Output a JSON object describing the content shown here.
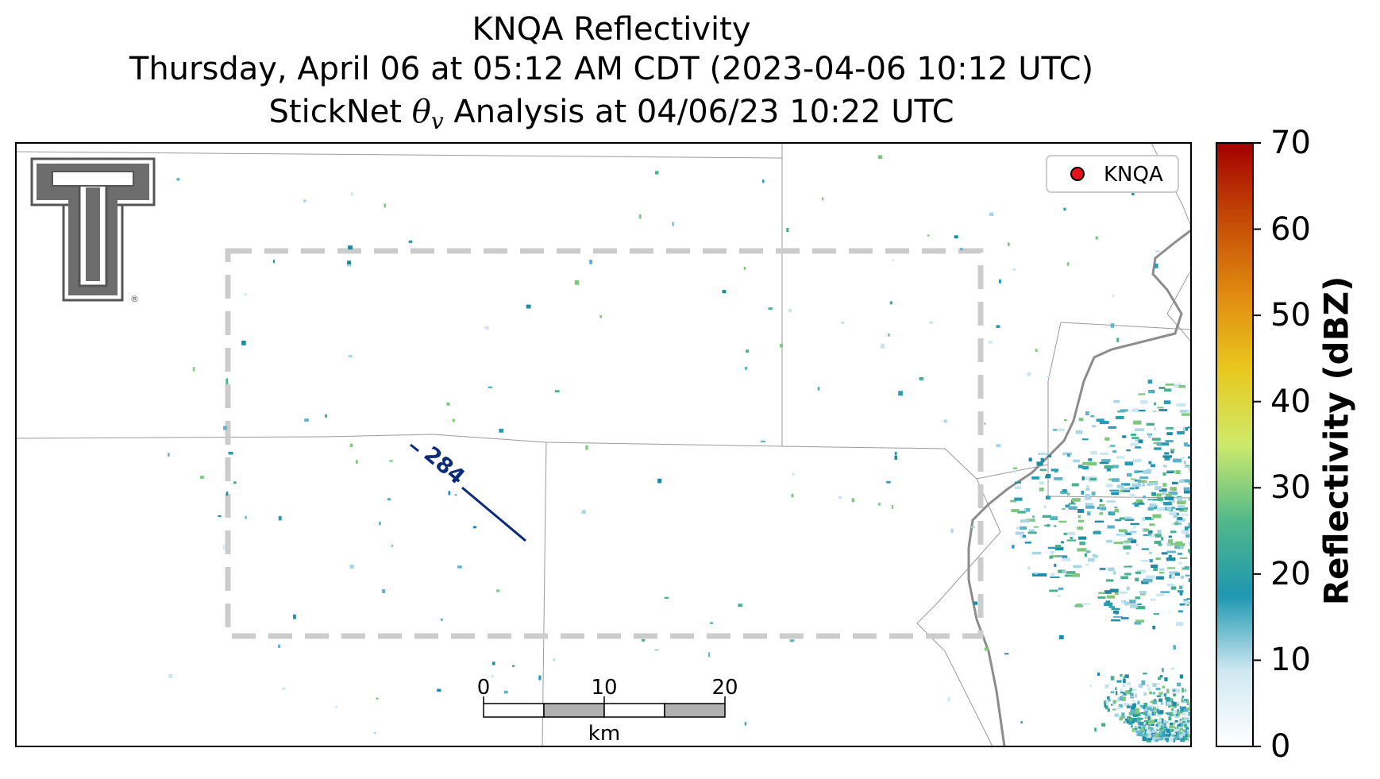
{
  "title": {
    "line1": "KNQA Reflectivity",
    "line2": "Thursday, April 06 at 05:12 AM CDT (2023-04-06 10:12 UTC)",
    "line3_prefix": "StickNet ",
    "line3_theta": "θ",
    "line3_sub": "v",
    "line3_suffix": " Analysis at 04/06/23 10:22 UTC"
  },
  "legend": {
    "marker_color": "#e8121a",
    "label": "KNQA"
  },
  "logo": {
    "name": "Double T",
    "registered_mark": "®"
  },
  "contour": {
    "label": "284",
    "color": "#0b2a78"
  },
  "analysis_box": {
    "style": "dashed",
    "color": "#cccccc"
  },
  "scalebar": {
    "ticks": [
      "0",
      "10",
      "20"
    ],
    "unit": "km"
  },
  "colorbar": {
    "label": "Reflectivity (dBZ)",
    "ticks": [
      "0",
      "10",
      "20",
      "30",
      "40",
      "50",
      "60",
      "70"
    ],
    "min": 0,
    "max": 70,
    "colors": [
      "#ffffff",
      "#cfe8f2",
      "#1e97b0",
      "#52b88a",
      "#cdea6a",
      "#e9c81e",
      "#e08a10",
      "#c44a06",
      "#a30000"
    ]
  }
}
